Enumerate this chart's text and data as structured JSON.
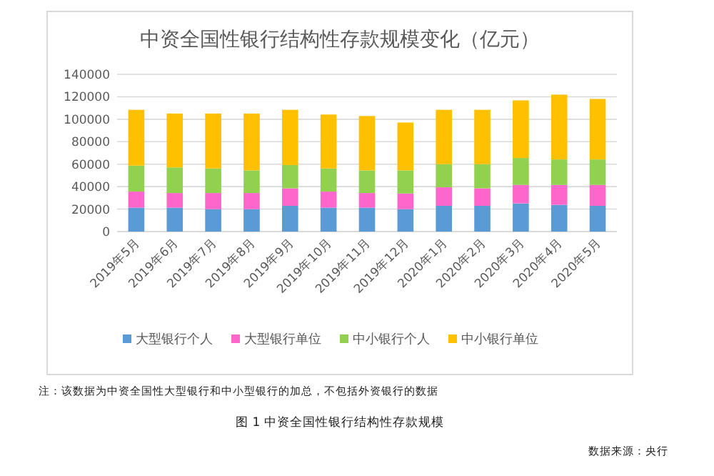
{
  "chart_data": {
    "type": "bar",
    "stacked": true,
    "title": "中资全国性银行结构性存款规模变化（亿元）",
    "categories": [
      "2019年5月",
      "2019年6月",
      "2019年7月",
      "2019年8月",
      "2019年9月",
      "2019年10月",
      "2019年11月",
      "2019年12月",
      "2020年1月",
      "2020年2月",
      "2020年3月",
      "2020年4月",
      "2020年5月"
    ],
    "series": [
      {
        "name": "大型银行个人",
        "color": "#5b9bd5",
        "values": [
          21300,
          21300,
          20000,
          20000,
          22900,
          21300,
          21300,
          20000,
          22900,
          22900,
          25100,
          23800,
          22900
        ]
      },
      {
        "name": "大型银行单位",
        "color": "#ff66cc",
        "values": [
          14300,
          13000,
          14300,
          14300,
          15600,
          14300,
          13000,
          13900,
          16500,
          15600,
          16400,
          17700,
          18600
        ]
      },
      {
        "name": "中小银行个人",
        "color": "#92d050",
        "values": [
          23100,
          22800,
          21900,
          20200,
          20700,
          20600,
          20200,
          20600,
          20600,
          21500,
          24000,
          22700,
          22700
        ]
      },
      {
        "name": "中小银行单位",
        "color": "#ffc000",
        "values": [
          49700,
          48000,
          48900,
          50600,
          49200,
          48000,
          48400,
          42600,
          48400,
          48400,
          51300,
          57700,
          53900
        ]
      }
    ],
    "ylim": [
      0,
      140000
    ],
    "yticks": [
      0,
      20000,
      40000,
      60000,
      80000,
      100000,
      120000,
      140000
    ],
    "grid": "y",
    "legend": "bottom",
    "annotations": [
      "注：该数据为中资全国性大型银行和中小型银行的加总，不包括外资银行的数据",
      "图 1 中资全国性银行结构性存款规模",
      "数据来源：央行"
    ]
  }
}
